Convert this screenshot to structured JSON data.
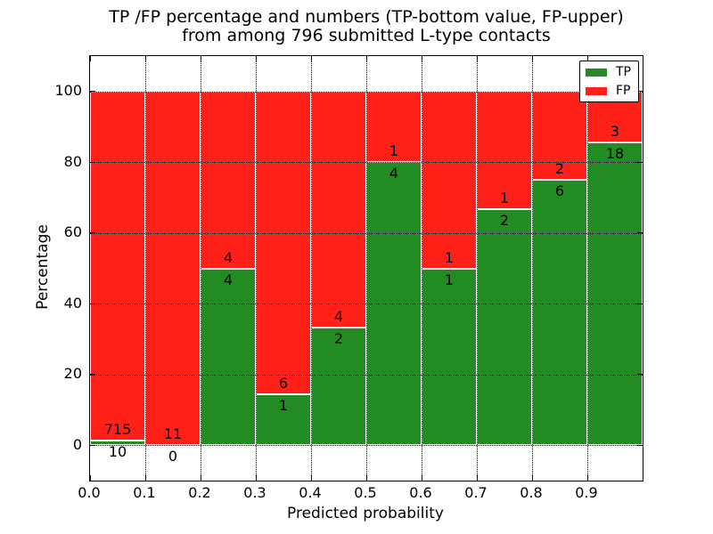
{
  "figure": {
    "title_line1": "TP /FP percentage and numbers (TP-bottom value, FP-upper)",
    "title_line2": "from among 796 submitted L-type contacts"
  },
  "colors": {
    "tp": "#228b22",
    "fp": "#ff2118",
    "bar_edge": "#ffffff",
    "grid": "#000000",
    "background": "#ffffff"
  },
  "legend": {
    "items": [
      {
        "label": "TP",
        "color_key": "tp"
      },
      {
        "label": "FP",
        "color_key": "fp"
      }
    ]
  },
  "chart_data": {
    "type": "bar",
    "stacked": true,
    "normalized_to_percent_per_bar": true,
    "title": "TP /FP percentage and numbers (TP-bottom value, FP-upper) from among 796 submitted L-type contacts",
    "xlabel": "Predicted probability",
    "ylabel": "Percentage",
    "xlim": [
      0.0,
      1.0
    ],
    "ylim": [
      -10,
      110
    ],
    "grid": "dotted",
    "legend_position": "upper right",
    "total_contacts": 796,
    "categories": [
      "0.0-0.1",
      "0.1-0.2",
      "0.2-0.3",
      "0.3-0.4",
      "0.4-0.5",
      "0.5-0.6",
      "0.6-0.7",
      "0.7-0.8",
      "0.8-0.9",
      "0.9-1.0"
    ],
    "xtick_labels": [
      "0.0",
      "0.1",
      "0.2",
      "0.3",
      "0.4",
      "0.5",
      "0.6",
      "0.7",
      "0.8",
      "0.9"
    ],
    "ytick_values": [
      0,
      20,
      40,
      60,
      80,
      100
    ],
    "series": [
      {
        "name": "TP",
        "position": "bottom",
        "color_key": "tp",
        "counts": [
          10,
          0,
          4,
          1,
          2,
          4,
          1,
          2,
          6,
          18
        ]
      },
      {
        "name": "FP",
        "position": "top",
        "color_key": "fp",
        "counts": [
          715,
          11,
          4,
          6,
          4,
          1,
          1,
          1,
          2,
          3
        ]
      }
    ],
    "tp_percent_per_bar": [
      1.4,
      0.0,
      50.0,
      14.3,
      33.3,
      80.0,
      50.0,
      66.7,
      75.0,
      85.7
    ]
  }
}
